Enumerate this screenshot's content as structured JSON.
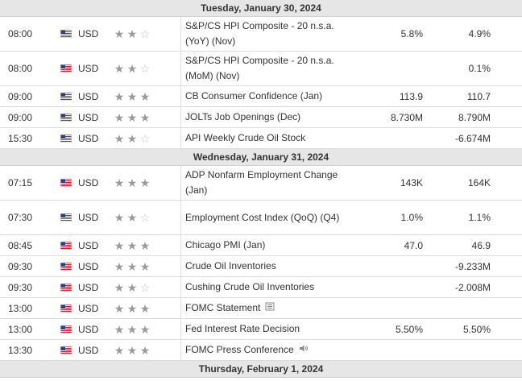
{
  "days": [
    {
      "label": "Tuesday, January 30, 2024",
      "events": [
        {
          "time": "08:00",
          "currency": "USD",
          "importance": 2,
          "event": "S&P/CS HPI Composite - 20 n.s.a. (YoY) (Nov)",
          "previous": "5.8%",
          "forecast": "4.9%",
          "lines": 2
        },
        {
          "time": "08:00",
          "currency": "USD",
          "importance": 2,
          "event": "S&P/CS HPI Composite - 20 n.s.a. (MoM) (Nov)",
          "previous": "",
          "forecast": "0.1%",
          "lines": 2
        },
        {
          "time": "09:00",
          "currency": "USD",
          "importance": 3,
          "event": "CB Consumer Confidence (Jan)",
          "previous": "113.9",
          "forecast": "110.7",
          "lines": 1
        },
        {
          "time": "09:00",
          "currency": "USD",
          "importance": 3,
          "event": "JOLTs Job Openings (Dec)",
          "previous": "8.730M",
          "forecast": "8.790M",
          "lines": 1
        },
        {
          "time": "15:30",
          "currency": "USD",
          "importance": 2,
          "event": "API Weekly Crude Oil Stock",
          "previous": "",
          "forecast": "-6.674M",
          "lines": 1
        }
      ]
    },
    {
      "label": "Wednesday, January 31, 2024",
      "events": [
        {
          "time": "07:15",
          "currency": "USD",
          "importance": 3,
          "event": "ADP Nonfarm Employment Change (Jan)",
          "previous": "143K",
          "forecast": "164K",
          "lines": 2
        },
        {
          "time": "07:30",
          "currency": "USD",
          "importance": 2,
          "event": "Employment Cost Index (QoQ) (Q4)",
          "previous": "1.0%",
          "forecast": "1.1%",
          "lines": 2
        },
        {
          "time": "08:45",
          "currency": "USD",
          "importance": 3,
          "event": "Chicago PMI (Jan)",
          "previous": "47.0",
          "forecast": "46.9",
          "lines": 1
        },
        {
          "time": "09:30",
          "currency": "USD",
          "importance": 3,
          "event": "Crude Oil Inventories",
          "previous": "",
          "forecast": "-9.233M",
          "lines": 1
        },
        {
          "time": "09:30",
          "currency": "USD",
          "importance": 2,
          "event": "Cushing Crude Oil Inventories",
          "previous": "",
          "forecast": "-2.008M",
          "lines": 1
        },
        {
          "time": "13:00",
          "currency": "USD",
          "importance": 3,
          "event": "FOMC Statement",
          "previous": "",
          "forecast": "",
          "lines": 1,
          "icon": "document-icon"
        },
        {
          "time": "13:00",
          "currency": "USD",
          "importance": 3,
          "event": "Fed Interest Rate Decision",
          "previous": "5.50%",
          "forecast": "5.50%",
          "lines": 1
        },
        {
          "time": "13:30",
          "currency": "USD",
          "importance": 3,
          "event": "FOMC Press Conference",
          "previous": "",
          "forecast": "",
          "lines": 1,
          "icon": "speaker-icon"
        }
      ]
    },
    {
      "label": "Thursday, February 1, 2024",
      "events": []
    }
  ],
  "colors": {
    "header_bg": "#e6e6e6",
    "star_on": "#9a9a9a",
    "star_off": "#c6c6c6",
    "border": "#dcdcdc"
  }
}
